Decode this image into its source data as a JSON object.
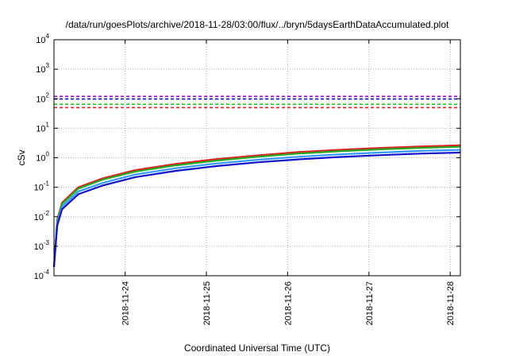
{
  "chart_data": {
    "type": "line",
    "title": "/data/run/goesPlots/archive/2018-11-28/03:00/flux/../bryn/5daysEarthDataAccumulated.plot",
    "xlabel": "Coordinated Universal Time (UTC)",
    "ylabel": "cSv",
    "yscale": "log",
    "ylim": [
      0.0001,
      10000
    ],
    "xlim": [
      "2018-11-23T03:00",
      "2018-11-28T03:00"
    ],
    "grid": true,
    "x_ticks": [
      "2018-11-24",
      "2018-11-25",
      "2018-11-26",
      "2018-11-27",
      "2018-11-28"
    ],
    "y_ticks": [
      {
        "base": "10",
        "exp": "-4",
        "value": 0.0001
      },
      {
        "base": "10",
        "exp": "-3",
        "value": 0.001
      },
      {
        "base": "10",
        "exp": "-2",
        "value": 0.01
      },
      {
        "base": "10",
        "exp": "-1",
        "value": 0.1
      },
      {
        "base": "10",
        "exp": "0",
        "value": 1
      },
      {
        "base": "10",
        "exp": "1",
        "value": 10
      },
      {
        "base": "10",
        "exp": "2",
        "value": 100
      },
      {
        "base": "10",
        "exp": "3",
        "value": 1000
      },
      {
        "base": "10",
        "exp": "4",
        "value": 10000
      }
    ],
    "series": [
      {
        "color": "#dd2222",
        "values": [
          [
            0.0,
            0.0002
          ],
          [
            0.04,
            0.008
          ],
          [
            0.1,
            0.03
          ],
          [
            0.3,
            0.1
          ],
          [
            0.6,
            0.2
          ],
          [
            1.0,
            0.38
          ],
          [
            1.5,
            0.62
          ],
          [
            2.0,
            0.9
          ],
          [
            2.5,
            1.2
          ],
          [
            3.0,
            1.55
          ],
          [
            3.5,
            1.85
          ],
          [
            4.0,
            2.15
          ],
          [
            4.5,
            2.4
          ],
          [
            5.0,
            2.65
          ]
        ]
      },
      {
        "color": "#22aa22",
        "values": [
          [
            0.0,
            0.0002
          ],
          [
            0.04,
            0.007
          ],
          [
            0.1,
            0.027
          ],
          [
            0.3,
            0.09
          ],
          [
            0.6,
            0.18
          ],
          [
            1.0,
            0.34
          ],
          [
            1.5,
            0.55
          ],
          [
            2.0,
            0.8
          ],
          [
            2.5,
            1.08
          ],
          [
            3.0,
            1.38
          ],
          [
            3.5,
            1.65
          ],
          [
            4.0,
            1.92
          ],
          [
            4.5,
            2.15
          ],
          [
            5.0,
            2.35
          ]
        ]
      },
      {
        "color": "#3399ff",
        "values": [
          [
            0.0,
            0.0002
          ],
          [
            0.04,
            0.006
          ],
          [
            0.1,
            0.022
          ],
          [
            0.3,
            0.072
          ],
          [
            0.6,
            0.14
          ],
          [
            1.0,
            0.27
          ],
          [
            1.5,
            0.44
          ],
          [
            2.0,
            0.64
          ],
          [
            2.5,
            0.85
          ],
          [
            3.0,
            1.08
          ],
          [
            3.5,
            1.3
          ],
          [
            4.0,
            1.5
          ],
          [
            4.5,
            1.7
          ],
          [
            5.0,
            1.85
          ]
        ]
      },
      {
        "color": "#1111cc",
        "values": [
          [
            0.0,
            0.0002
          ],
          [
            0.04,
            0.005
          ],
          [
            0.1,
            0.018
          ],
          [
            0.3,
            0.058
          ],
          [
            0.6,
            0.115
          ],
          [
            1.0,
            0.22
          ],
          [
            1.5,
            0.36
          ],
          [
            2.0,
            0.52
          ],
          [
            2.5,
            0.7
          ],
          [
            3.0,
            0.88
          ],
          [
            3.5,
            1.06
          ],
          [
            4.0,
            1.22
          ],
          [
            4.5,
            1.38
          ],
          [
            5.0,
            1.5
          ]
        ]
      }
    ],
    "thresholds": [
      {
        "color": "#9900cc",
        "value": 120
      },
      {
        "color": "#1111cc",
        "value": 98
      },
      {
        "color": "#22cc22",
        "value": 65
      },
      {
        "color": "#dd2222",
        "value": 50
      }
    ]
  }
}
